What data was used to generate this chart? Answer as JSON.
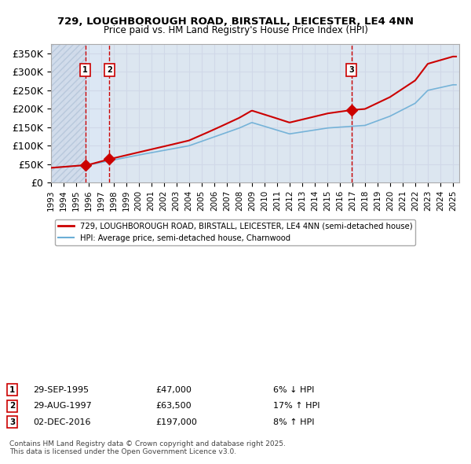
{
  "title_line1": "729, LOUGHBOROUGH ROAD, BIRSTALL, LEICESTER, LE4 4NN",
  "title_line2": "Price paid vs. HM Land Registry's House Price Index (HPI)",
  "xlabel": "",
  "ylabel": "",
  "ylim": [
    0,
    375000
  ],
  "yticks": [
    0,
    50000,
    100000,
    150000,
    200000,
    250000,
    300000,
    350000
  ],
  "ytick_labels": [
    "£0",
    "£50K",
    "£100K",
    "£150K",
    "£200K",
    "£250K",
    "£300K",
    "£350K"
  ],
  "hpi_color": "#6baed6",
  "price_color": "#cc0000",
  "marker_color": "#cc0000",
  "vline_color": "#cc0000",
  "grid_color": "#d0d8e8",
  "bg_color": "#eef2f8",
  "plot_bg_color": "#dce6f0",
  "hatch_color": "#c8d4e8",
  "legend_line1": "729, LOUGHBOROUGH ROAD, BIRSTALL, LEICESTER, LE4 4NN (semi-detached house)",
  "legend_line2": "HPI: Average price, semi-detached house, Charnwood",
  "sale1_date": "29-SEP-1995",
  "sale1_price": 47000,
  "sale1_pct": "6% ↓ HPI",
  "sale2_date": "29-AUG-1997",
  "sale2_price": 63500,
  "sale2_pct": "17% ↑ HPI",
  "sale3_date": "02-DEC-2016",
  "sale3_price": 197000,
  "sale3_pct": "8% ↑ HPI",
  "footer": "Contains HM Land Registry data © Crown copyright and database right 2025.\nThis data is licensed under the Open Government Licence v3.0.",
  "sale1_year": 1995.75,
  "sale2_year": 1997.67,
  "sale3_year": 2016.92
}
